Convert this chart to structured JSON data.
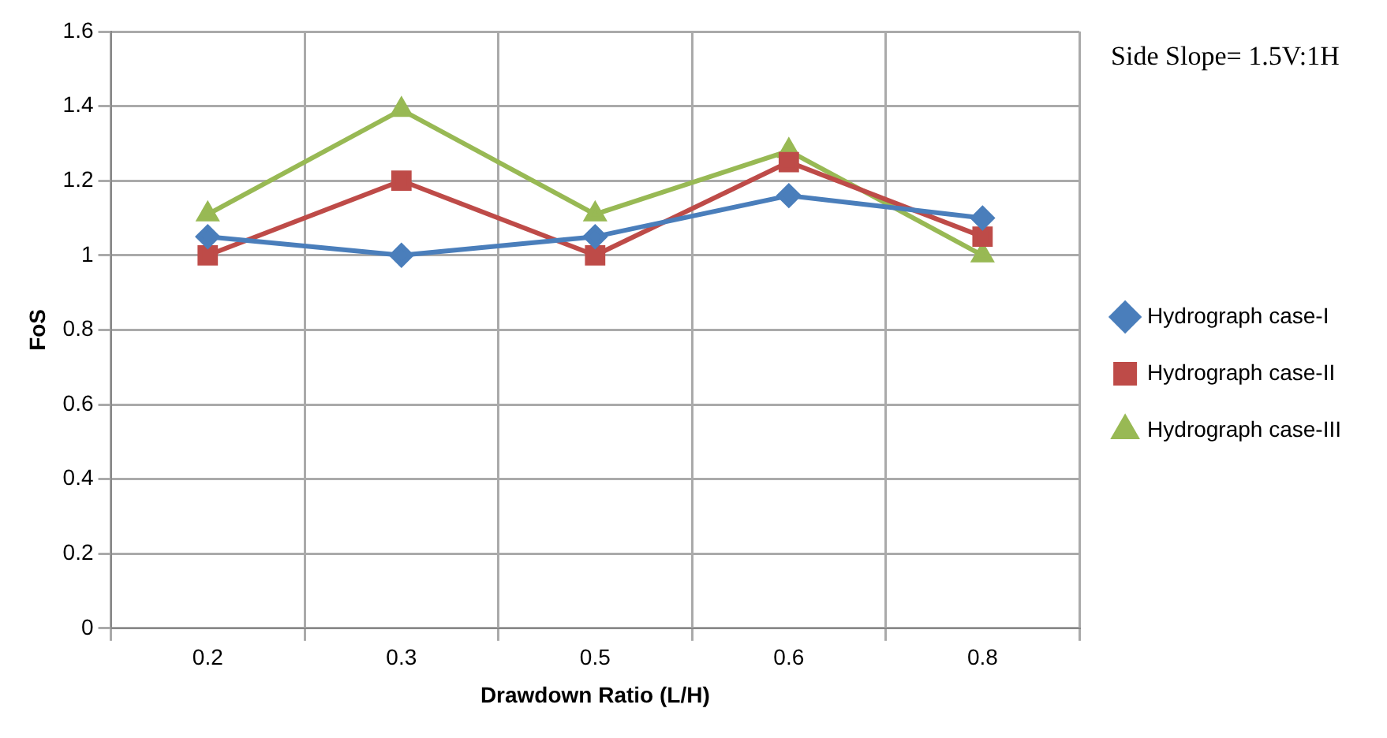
{
  "chart_data": {
    "type": "line",
    "xlabel": "Drawdown Ratio (L/H)",
    "ylabel": "FoS",
    "categories": [
      "0.2",
      "0.3",
      "0.5",
      "0.6",
      "0.8"
    ],
    "series": [
      {
        "name": "Hydrograph case-I",
        "color": "#4a7ebb",
        "marker": "diamond",
        "values": [
          1.05,
          1.0,
          1.05,
          1.16,
          1.1
        ]
      },
      {
        "name": "Hydrograph case-II",
        "color": "#be4b48",
        "marker": "square",
        "values": [
          1.0,
          1.2,
          1.0,
          1.25,
          1.05
        ]
      },
      {
        "name": "Hydrograph case-III",
        "color": "#98b954",
        "marker": "triangle",
        "values": [
          1.11,
          1.39,
          1.11,
          1.28,
          1.0
        ]
      }
    ],
    "ylim": [
      0,
      1.6
    ],
    "yticks": [
      0,
      0.2,
      0.4,
      0.6,
      0.8,
      1,
      1.2,
      1.4,
      1.6
    ],
    "grid": true,
    "legend": "right",
    "annotations": [
      "Side Slope= 1.5V:1H"
    ]
  }
}
